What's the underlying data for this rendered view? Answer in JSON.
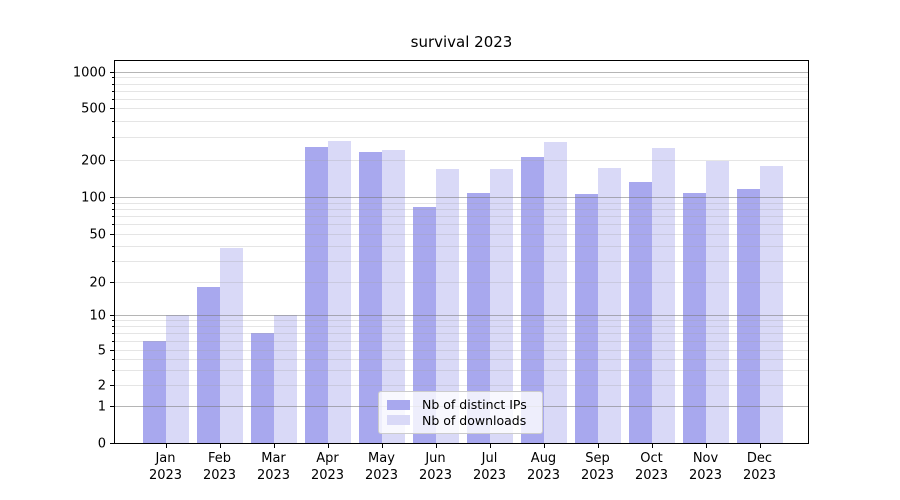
{
  "title": "survival 2023",
  "chart_data": {
    "type": "bar",
    "title": "survival 2023",
    "categories": [
      "Jan",
      "Feb",
      "Mar",
      "Apr",
      "May",
      "Jun",
      "Jul",
      "Aug",
      "Sep",
      "Oct",
      "Nov",
      "Dec"
    ],
    "category_year": "2023",
    "series": [
      {
        "name": "Nb of distinct IPs",
        "color": "#a8a8ee",
        "values": [
          6,
          18,
          7,
          250,
          230,
          83,
          108,
          210,
          105,
          133,
          107,
          116
        ]
      },
      {
        "name": "Nb of downloads",
        "color": "#d9d9f7",
        "values": [
          10,
          38,
          10,
          280,
          240,
          170,
          170,
          275,
          172,
          245,
          198,
          179
        ]
      }
    ],
    "yscale": "log-like (compressed low end, includes 0 baseline)",
    "yticks": [
      0,
      1,
      2,
      5,
      10,
      20,
      50,
      100,
      200,
      500,
      1000
    ],
    "yticks_minor": [
      3,
      4,
      6,
      7,
      8,
      9,
      30,
      40,
      60,
      70,
      80,
      90,
      300,
      400,
      600,
      700,
      800,
      900
    ],
    "ylim": [
      0,
      1270
    ],
    "xlabel": "",
    "ylabel": "",
    "grid": "horizontal major + minor, drawn over bars",
    "legend_position": "lower center",
    "colors": {
      "grid_major": "rgba(120,120,120,0.55)",
      "grid_minor": "rgba(160,160,160,0.28)",
      "spine": "#000000",
      "background": "#ffffff"
    }
  }
}
